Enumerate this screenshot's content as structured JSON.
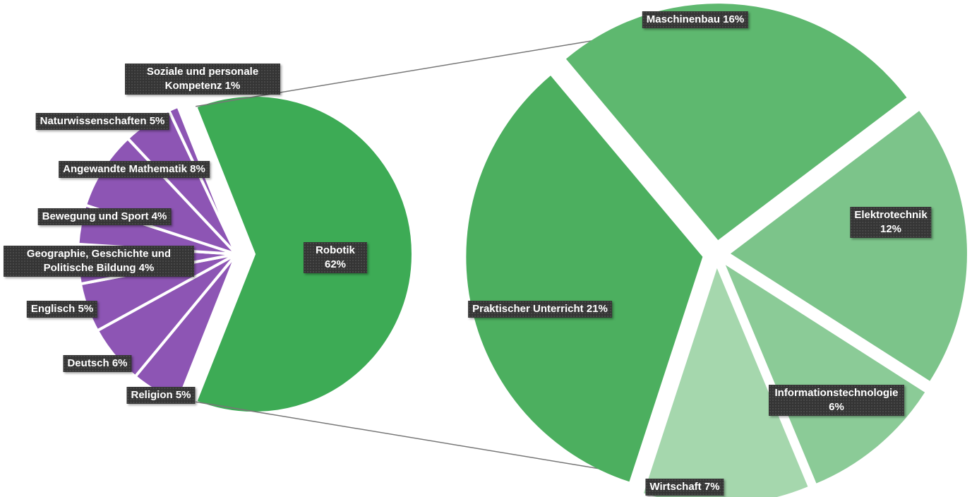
{
  "chart_data": [
    {
      "type": "pie",
      "categories": [
        "Robotik",
        "Religion",
        "Deutsch",
        "Englisch",
        "Geographie, Geschichte und Politische Bildung",
        "Bewegung und Sport",
        "Angewandte Mathematik",
        "Naturwissenschaften",
        "Soziale und personale Kompetenz"
      ],
      "values": [
        62,
        5,
        6,
        5,
        4,
        4,
        8,
        5,
        1
      ],
      "value_labels": [
        "62%",
        "5%",
        "6%",
        "5%",
        "4%",
        "4%",
        "8%",
        "5%",
        "1%"
      ],
      "colors": [
        "#3dab55",
        "#8d55b4",
        "#8d55b4",
        "#8d55b4",
        "#8d55b4",
        "#8d55b4",
        "#8d55b4",
        "#8d55b4",
        "#8d55b4"
      ]
    },
    {
      "type": "pie",
      "categories": [
        "Maschinenbau",
        "Elektrotechnik",
        "Informationstechnologie",
        "Wirtschaft",
        "Praktischer Unterricht"
      ],
      "values": [
        16,
        12,
        6,
        7,
        21
      ],
      "value_labels": [
        "16%",
        "12%",
        "6%",
        "7%",
        "21%"
      ],
      "colors": [
        "#5eb86f",
        "#7cc48a",
        "#8bcb97",
        "#a5d7ad",
        "#4caf5f"
      ]
    }
  ]
}
